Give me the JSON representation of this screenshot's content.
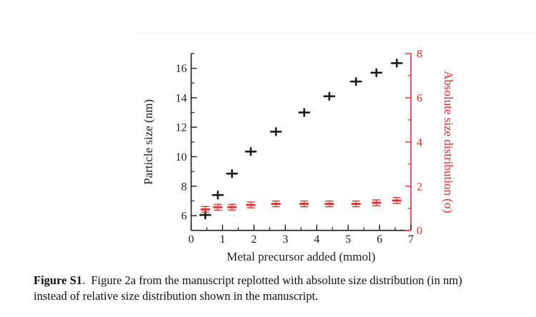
{
  "figure": {
    "caption": {
      "label": "Figure S1",
      "line1_rest": ".  Figure 2a from the manuscript replotted with absolute size distribution (in nm)",
      "line2": "instead of relative size distribution shown in the manuscript."
    }
  },
  "chart_data": {
    "type": "scatter",
    "title": "",
    "grid": false,
    "legend": null,
    "x_axis": {
      "label": "Metal precursor added (mmol)",
      "range": [
        0,
        7
      ],
      "major_ticks": [
        0,
        1,
        2,
        3,
        4,
        5,
        6,
        7
      ],
      "minor_step": 0.5,
      "color": "#1c1c1c"
    },
    "y_left_axis": {
      "label": "Particle size (nm)",
      "range": [
        5,
        17
      ],
      "major_ticks": [
        6,
        8,
        10,
        12,
        14,
        16
      ],
      "minor_ticks": [
        7,
        9,
        11,
        13,
        15,
        17
      ],
      "color": "#1c1c1c"
    },
    "y_right_axis": {
      "label": "Absolute size distribution (σ)",
      "range": [
        0,
        8
      ],
      "major_ticks": [
        0,
        2,
        4,
        6,
        8
      ],
      "minor_ticks": [
        1,
        3,
        5,
        7
      ],
      "color": "#dd2e2e"
    },
    "x": [
      0.45,
      0.85,
      1.3,
      1.9,
      2.7,
      3.6,
      4.4,
      5.25,
      5.9,
      6.55
    ],
    "series": [
      {
        "name": "Particle size (nm)",
        "axis": "left",
        "marker": "plus",
        "color": "#1c1c1c",
        "values": [
          6.05,
          7.4,
          8.85,
          10.35,
          11.7,
          13.0,
          14.1,
          15.1,
          15.7,
          16.35
        ],
        "x_err": 0.16,
        "y_err": 0.24
      },
      {
        "name": "Absolute size distribution (σ)",
        "axis": "right",
        "marker": "dash-errorbar",
        "color": "#dd2e2e",
        "values": [
          0.95,
          1.05,
          1.05,
          1.15,
          1.2,
          1.2,
          1.2,
          1.2,
          1.25,
          1.35
        ],
        "y_err": 0.13
      }
    ]
  }
}
